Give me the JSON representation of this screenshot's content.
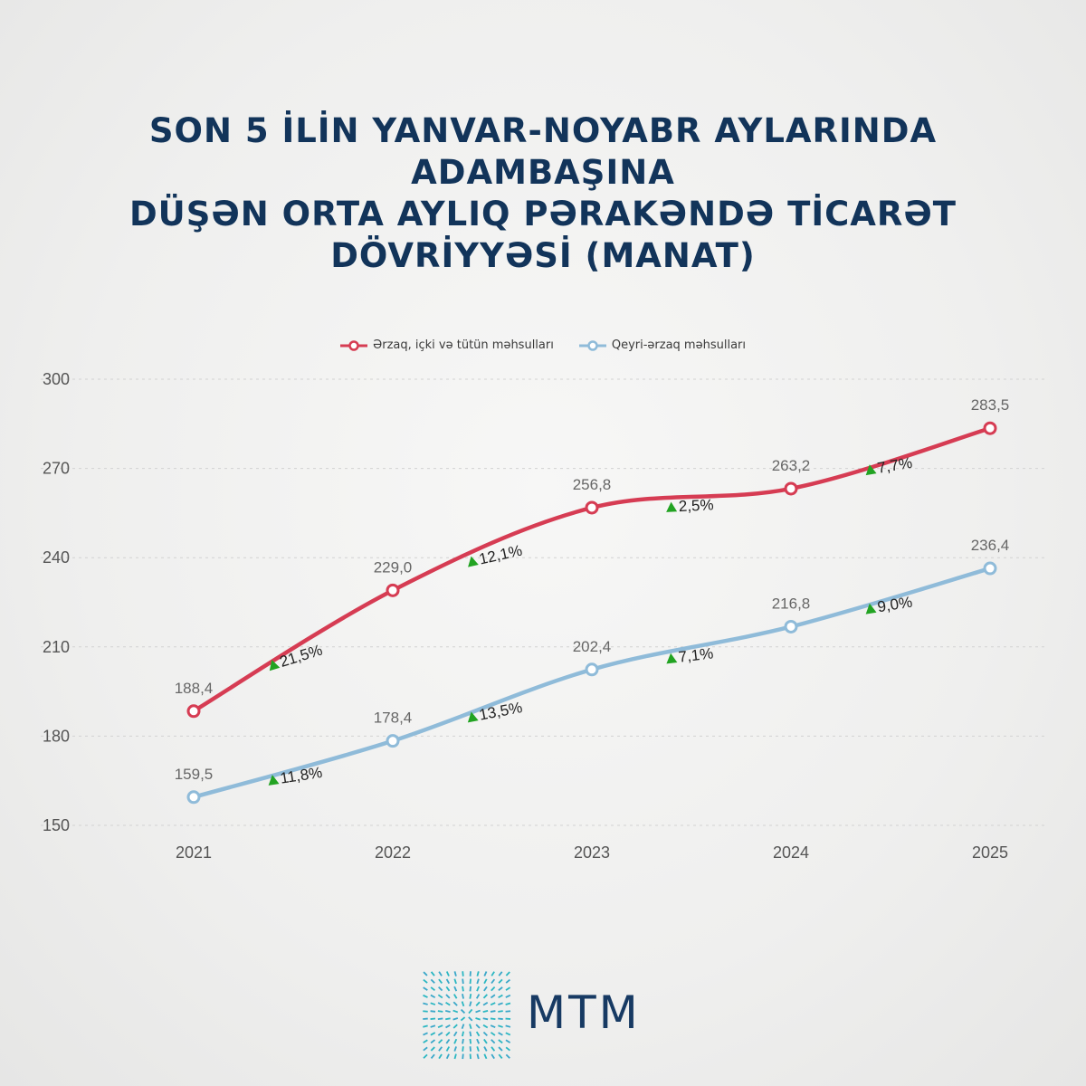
{
  "title": {
    "line1": "SON 5 İLİN YANVAR-NOYABR AYLARINDA ADAMBAŞINA",
    "line2": "DÜŞƏN ORTA AYLIQ PƏRAKƏNDƏ TİCARƏT",
    "line3": "DÖVRİYYƏSİ (MANAT)"
  },
  "brand": {
    "name": "MTM"
  },
  "colors": {
    "food": "#d63c53",
    "nonfood": "#8fbbd9",
    "title": "#12345a",
    "up_arrow": "#22a322"
  },
  "chart_data": {
    "type": "line",
    "categories": [
      "2021",
      "2022",
      "2023",
      "2024",
      "2025"
    ],
    "ylim": [
      150,
      300
    ],
    "yticks": [
      "150",
      "180",
      "210",
      "240",
      "270",
      "300"
    ],
    "grid": true,
    "legend_position": "top-center",
    "series": [
      {
        "name": "Ərzaq, içki və tütün məhsulları",
        "color": "#d63c53",
        "values": [
          188.4,
          229.0,
          256.8,
          263.2,
          283.5
        ],
        "labels": [
          "188,4",
          "229,0",
          "256,8",
          "263,2",
          "283,5"
        ],
        "growth": [
          "21,5%",
          "12,1%",
          "2,5%",
          "7,7%"
        ]
      },
      {
        "name": "Qeyri-ərzaq məhsulları",
        "color": "#8fbbd9",
        "values": [
          159.5,
          178.4,
          202.4,
          216.8,
          236.4
        ],
        "labels": [
          "159,5",
          "178,4",
          "202,4",
          "216,8",
          "236,4"
        ],
        "growth": [
          "11,8%",
          "13,5%",
          "7,1%",
          "9,0%"
        ]
      }
    ]
  }
}
